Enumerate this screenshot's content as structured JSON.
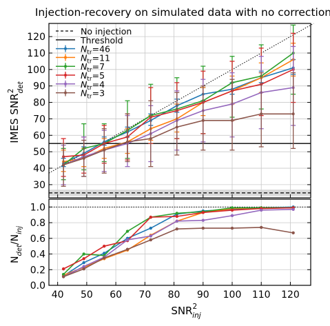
{
  "chart_data": [
    {
      "type": "line",
      "title": "Injection-recovery on simulated data with no correction",
      "ylabel": "IMES SNR",
      "ylabel_sub": "det",
      "ylabel_sup": "2",
      "ylim": [
        22,
        128
      ],
      "xlim": [
        37,
        127
      ],
      "y_ticks": [
        30,
        40,
        50,
        60,
        70,
        80,
        90,
        100,
        110,
        120
      ],
      "x_ticks": [
        40,
        50,
        60,
        70,
        80,
        90,
        100,
        110,
        120
      ],
      "grid": true,
      "threshold": 55,
      "no_injection_level": 25,
      "no_injection_band": [
        23,
        27
      ],
      "reference_line": "y = x",
      "legend": [
        {
          "label": "No injection",
          "style": "dashed",
          "color": "#000000"
        },
        {
          "label": "Threshold",
          "style": "solid",
          "color": "#000000"
        }
      ],
      "x": [
        42,
        49,
        56,
        64,
        72,
        81,
        90,
        100,
        110,
        121
      ],
      "series": [
        {
          "label_main": "N",
          "label_sub": "tr",
          "label_suffix": "=46",
          "color": "#1f77b4",
          "values": [
            43,
            49,
            56,
            62,
            69,
            78,
            85,
            88,
            95,
            101
          ],
          "err": [
            [
              41,
              46
            ],
            [
              47,
              53
            ],
            [
              54,
              59
            ],
            [
              59,
              65
            ],
            [
              66,
              73
            ],
            [
              74,
              82
            ],
            [
              81,
              89
            ],
            [
              85,
              92
            ],
            [
              92,
              99
            ],
            [
              97,
              106
            ]
          ]
        },
        {
          "label_main": "N",
          "label_sub": "tr",
          "label_suffix": "=11",
          "color": "#ff7f0e",
          "values": [
            44,
            46,
            52,
            56,
            64,
            70,
            80,
            87,
            95,
            106
          ],
          "err": [
            [
              38,
              51
            ],
            [
              41,
              52
            ],
            [
              46,
              58
            ],
            [
              49,
              64
            ],
            [
              57,
              72
            ],
            [
              62,
              79
            ],
            [
              72,
              89
            ],
            [
              79,
              96
            ],
            [
              86,
              104
            ],
            [
              96,
              116
            ]
          ]
        },
        {
          "label_main": "N",
          "label_sub": "tr",
          "label_suffix": "=7",
          "color": "#2ca02c",
          "values": [
            42,
            52,
            55,
            63,
            72,
            76,
            81,
            92,
            96,
            110
          ],
          "err": [
            [
              33,
              52
            ],
            [
              39,
              67
            ],
            [
              44,
              67
            ],
            [
              46,
              81
            ],
            [
              55,
              91
            ],
            [
              58,
              95
            ],
            [
              61,
              102
            ],
            [
              71,
              108
            ],
            [
              76,
              115
            ],
            [
              85,
              127
            ]
          ]
        },
        {
          "label_main": "N",
          "label_sub": "tr",
          "label_suffix": "=5",
          "color": "#d62728",
          "values": [
            47,
            48,
            55,
            59,
            71,
            75,
            80,
            87,
            91,
            100
          ],
          "err": [
            [
              35,
              58
            ],
            [
              37,
              59
            ],
            [
              43,
              66
            ],
            [
              45,
              73
            ],
            [
              55,
              89
            ],
            [
              58,
              92
            ],
            [
              61,
              99
            ],
            [
              69,
              105
            ],
            [
              72,
              113
            ],
            [
              80,
              122
            ]
          ]
        },
        {
          "label_main": "N",
          "label_sub": "tr",
          "label_suffix": "=4",
          "color": "#9467bd",
          "values": [
            42,
            47,
            51,
            55,
            61,
            69,
            75,
            79,
            86,
            89
          ],
          "err": [
            [
              30,
              54
            ],
            [
              35,
              59
            ],
            [
              38,
              63
            ],
            [
              41,
              72
            ],
            [
              44,
              78
            ],
            [
              51,
              87
            ],
            [
              56,
              94
            ],
            [
              59,
              98
            ],
            [
              64,
              108
            ],
            [
              66,
              114
            ]
          ]
        },
        {
          "label_main": "N",
          "label_sub": "tr",
          "label_suffix": "=3",
          "color": "#8c564b",
          "values": [
            42,
            46,
            51,
            56,
            58,
            65,
            69,
            69,
            73,
            73
          ],
          "err": [
            [
              29,
              55
            ],
            [
              35,
              57
            ],
            [
              37,
              64
            ],
            [
              44,
              73
            ],
            [
              41,
              81
            ],
            [
              48,
              86
            ],
            [
              51,
              90
            ],
            [
              51,
              94
            ],
            [
              53,
              98
            ],
            [
              52,
              98
            ]
          ]
        }
      ]
    },
    {
      "type": "line",
      "ylabel": "N",
      "ylabel_sub1": "det",
      "ylabel_sep": "/N",
      "ylabel_sub2": "inj",
      "xlabel": "SNR",
      "xlabel_sup": "2",
      "xlabel_sub": "inj",
      "ylim": [
        0,
        1.1
      ],
      "xlim": [
        37,
        127
      ],
      "y_ticks": [
        0.0,
        0.2,
        0.4,
        0.6,
        0.8,
        1.0
      ],
      "y_tick_labels": [
        "0.0",
        "0.2",
        "0.4",
        "0.6",
        "0.8",
        "1.0"
      ],
      "x_ticks": [
        40,
        50,
        60,
        70,
        80,
        90,
        100,
        110,
        120
      ],
      "x_tick_labels": [
        "40",
        "50",
        "60",
        "70",
        "80",
        "90",
        "100",
        "110",
        "120"
      ],
      "grid": true,
      "reference_level": 1.0,
      "x": [
        42,
        49,
        56,
        64,
        72,
        81,
        90,
        100,
        110,
        121
      ],
      "series": [
        {
          "color": "#1f77b4",
          "values": [
            0.12,
            0.29,
            0.41,
            0.6,
            0.73,
            0.91,
            0.95,
            0.97,
            0.99,
            1.0
          ]
        },
        {
          "color": "#ff7f0e",
          "values": [
            0.13,
            0.23,
            0.34,
            0.45,
            0.64,
            0.82,
            0.93,
            0.98,
            0.99,
            0.99
          ]
        },
        {
          "color": "#2ca02c",
          "values": [
            0.14,
            0.4,
            0.38,
            0.69,
            0.87,
            0.92,
            0.94,
            0.99,
            0.99,
            0.99
          ]
        },
        {
          "color": "#d62728",
          "values": [
            0.21,
            0.34,
            0.5,
            0.57,
            0.87,
            0.88,
            0.93,
            0.96,
            0.98,
            0.99
          ]
        },
        {
          "color": "#9467bd",
          "values": [
            0.11,
            0.24,
            0.36,
            0.58,
            0.63,
            0.82,
            0.83,
            0.89,
            0.96,
            0.97
          ]
        },
        {
          "color": "#8c564b",
          "values": [
            0.11,
            0.21,
            0.35,
            0.46,
            0.58,
            0.72,
            0.73,
            0.73,
            0.74,
            0.67
          ]
        }
      ]
    }
  ]
}
